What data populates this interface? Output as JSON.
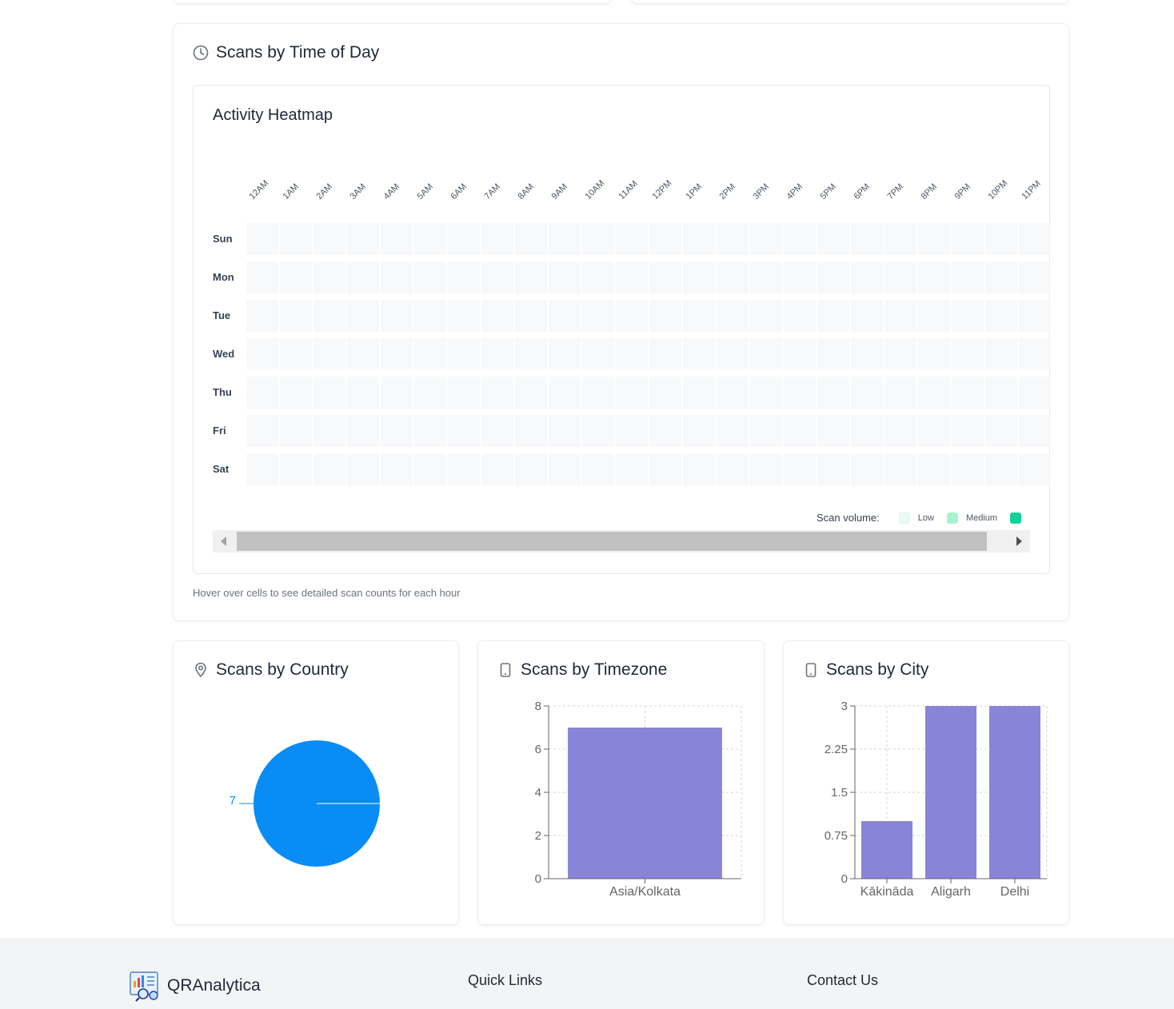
{
  "time_of_day": {
    "title": "Scans by Time of Day",
    "heatmap_title": "Activity Heatmap",
    "hours": [
      "12AM",
      "1AM",
      "2AM",
      "3AM",
      "4AM",
      "5AM",
      "6AM",
      "7AM",
      "8AM",
      "9AM",
      "10AM",
      "11AM",
      "12PM",
      "1PM",
      "2PM",
      "3PM",
      "4PM",
      "5PM",
      "6PM",
      "7PM",
      "8PM",
      "9PM",
      "10PM",
      "11PM"
    ],
    "days": [
      "Sun",
      "Mon",
      "Tue",
      "Wed",
      "Thu",
      "Fri",
      "Sat"
    ],
    "legend": {
      "label": "Scan volume:",
      "low": "Low",
      "medium": "Medium",
      "colors": [
        "#eafaf3",
        "#a7f3d0",
        "#10d29a"
      ]
    },
    "hint": "Hover over cells to see detailed scan counts for each hour"
  },
  "country": {
    "title": "Scans by Country",
    "chart_data": {
      "type": "pie",
      "slices": [
        {
          "label": "",
          "value": 7
        }
      ],
      "data_labels": [
        "7"
      ],
      "colors": [
        "#0a8cf5"
      ]
    }
  },
  "timezone": {
    "title": "Scans by Timezone",
    "chart_data": {
      "type": "bar",
      "categories": [
        "Asia/Kolkata"
      ],
      "values": [
        7
      ],
      "ylim": [
        0,
        8
      ],
      "yticks": [
        "0",
        "2",
        "4",
        "6",
        "8"
      ],
      "grid": true,
      "color": "#8884d8"
    }
  },
  "city": {
    "title": "Scans by City",
    "chart_data": {
      "type": "bar",
      "categories": [
        "Kākināda",
        "Aligarh",
        "Delhi"
      ],
      "values": [
        1,
        3,
        3
      ],
      "ylim": [
        0,
        3
      ],
      "yticks": [
        "0",
        "0.75",
        "1.5",
        "2.25",
        "3"
      ],
      "grid": true,
      "color": "#8884d8"
    }
  },
  "footer": {
    "brand": "QRAnalytica",
    "quick_links": "Quick Links",
    "contact": "Contact Us"
  }
}
